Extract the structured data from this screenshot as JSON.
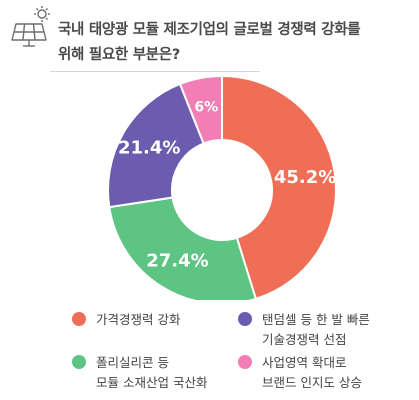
{
  "header": {
    "icon": "solar-panel-icon",
    "title_lines": [
      "국내 태양광 모듈 제조기업의 글로벌 경쟁력 강화를",
      "위해 필요한 부분은?"
    ]
  },
  "colors": {
    "slice_1": "#F06E55",
    "slice_2": "#5EC483",
    "slice_3": "#6B5CB0",
    "slice_4": "#F27EB5"
  },
  "chart_data": {
    "type": "pie",
    "donut": true,
    "title": "국내 태양광 모듈 제조기업의 글로벌 경쟁력 강화를 위해 필요한 부분은?",
    "slices": [
      {
        "name": "가격경쟁력 강화",
        "value": 45.2,
        "label": "45.2%"
      },
      {
        "name": "폴리실리콘 등 모듈 소재산업 국산화",
        "value": 27.4,
        "label": "27.4%"
      },
      {
        "name": "탠덤셀 등 한 발 빠른 기술경쟁력 선점",
        "value": 21.4,
        "label": "21.4%"
      },
      {
        "name": "사업영역 확대로 브랜드 인지도 상승",
        "value": 6,
        "label": "6%"
      }
    ],
    "legend_position": "bottom"
  },
  "legend": {
    "items": [
      {
        "lines": [
          "가격경쟁력 강화"
        ],
        "color": "#F06E55"
      },
      {
        "lines": [
          "탠덤셀 등 한 발 빠른",
          "기술경쟁력 선점"
        ],
        "color": "#6B5CB0"
      },
      {
        "lines": [
          "폴리실리콘 등",
          "모듈 소재산업 국산화"
        ],
        "color": "#5EC483"
      },
      {
        "lines": [
          "사업영역 확대로",
          "브랜드 인지도 상승"
        ],
        "color": "#F27EB5"
      }
    ]
  }
}
